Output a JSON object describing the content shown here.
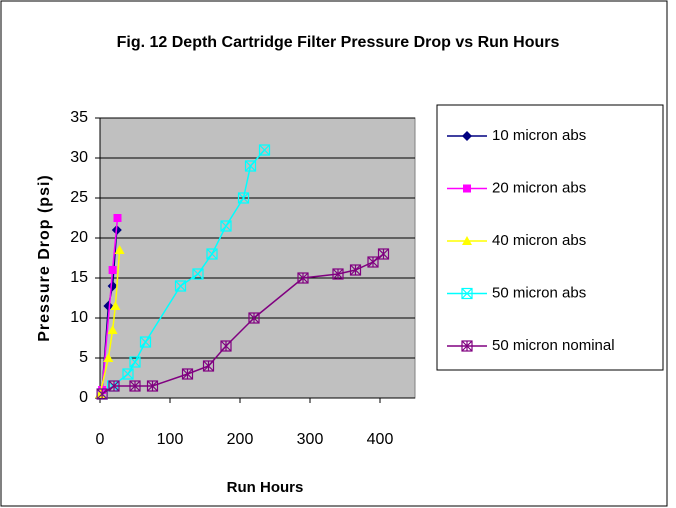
{
  "chart_data": {
    "type": "scatter",
    "title": "Fig. 12   Depth Cartridge Filter Pressure Drop vs Run Hours",
    "x_label": "Run Hours",
    "y_label": "Pressure Drop (psi)",
    "xlim": [
      0,
      450
    ],
    "xticks": [
      0,
      100,
      200,
      300,
      400
    ],
    "ylim": [
      0,
      35
    ],
    "yticks": [
      0,
      5,
      10,
      15,
      20,
      25,
      30,
      35
    ],
    "grid": true,
    "legend": "right",
    "series": [
      {
        "name": "10 micron abs",
        "color": "#000080",
        "marker": "diamond",
        "x": [
          3,
          12,
          18,
          24
        ],
        "y": [
          1,
          11.5,
          14,
          21
        ]
      },
      {
        "name": "20 micron abs",
        "color": "#ff00ff",
        "marker": "square",
        "x": [
          3,
          18,
          25
        ],
        "y": [
          1,
          16,
          22.5
        ]
      },
      {
        "name": "40 micron abs",
        "color": "#ffff00",
        "marker": "triangle",
        "x": [
          0,
          12,
          18,
          22,
          28
        ],
        "y": [
          0.5,
          5,
          8.5,
          11.5,
          18.5
        ]
      },
      {
        "name": "50 micron abs",
        "color": "#00ffff",
        "marker": "xsquare",
        "x": [
          3,
          18,
          40,
          50,
          65,
          115,
          140,
          160,
          180,
          205,
          215,
          235
        ],
        "y": [
          0.5,
          1.5,
          3,
          4.5,
          7,
          14,
          15.5,
          18,
          21.5,
          25,
          29,
          31
        ]
      },
      {
        "name": "50 micron nominal",
        "color": "#800080",
        "marker": "starsquare",
        "x": [
          3,
          20,
          50,
          75,
          125,
          155,
          180,
          220,
          290,
          340,
          365,
          390,
          405
        ],
        "y": [
          0.5,
          1.5,
          1.5,
          1.5,
          3,
          4,
          6.5,
          10,
          15,
          15.5,
          16,
          17,
          18
        ]
      }
    ]
  }
}
